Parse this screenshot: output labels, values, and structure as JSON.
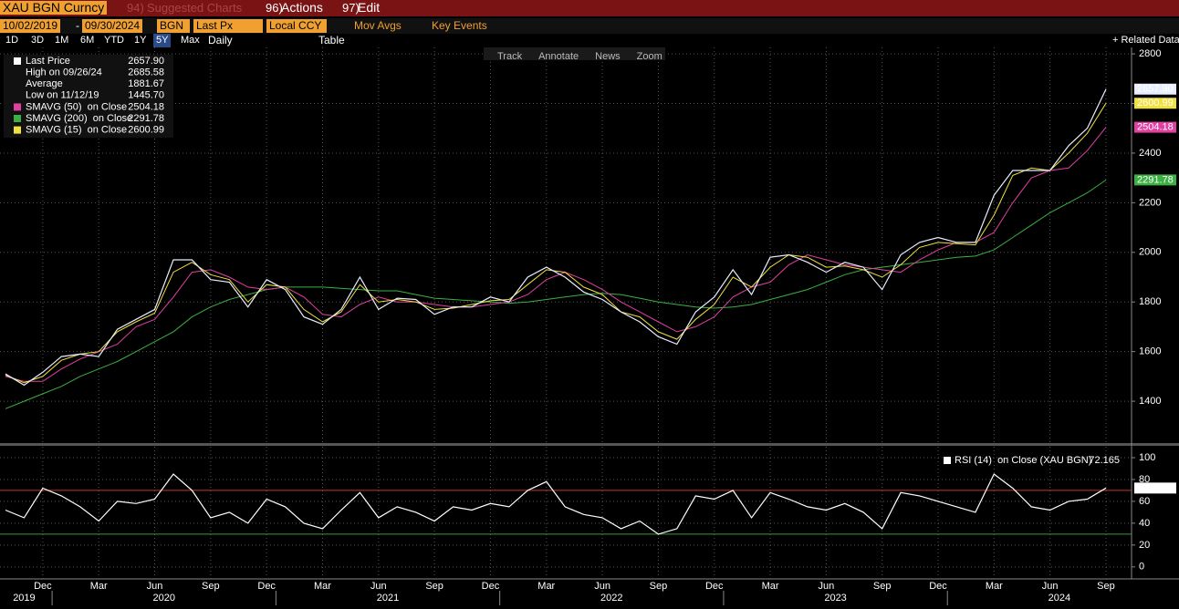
{
  "ui": {
    "ticker": "XAU BGN Curncy",
    "suggested_num": "94)",
    "suggested": "Suggested Charts",
    "actions_num": "96)",
    "actions": "Actions",
    "edit_num": "97)",
    "edit": "Edit",
    "start_date": "10/02/2019",
    "dash": "-",
    "end_date": "09/30/2024",
    "source": "BGN",
    "field": "Last Px",
    "currency": "Local CCY",
    "mov_avgs": "Mov Avgs",
    "key_events": "Key Events",
    "periods": [
      "1D",
      "3D",
      "1M",
      "6M",
      "YTD",
      "1Y",
      "5Y",
      "Max"
    ],
    "frequency": "Daily",
    "table": "Table",
    "related": "+ Related Data",
    "tools": [
      "Track",
      "Annotate",
      "News",
      "Zoom"
    ]
  },
  "chart_data": [
    {
      "type": "line",
      "x": [
        "2019-10",
        "2019-11",
        "2019-12",
        "2020-01",
        "2020-02",
        "2020-03",
        "2020-04",
        "2020-05",
        "2020-06",
        "2020-07",
        "2020-08",
        "2020-09",
        "2020-10",
        "2020-11",
        "2020-12",
        "2021-01",
        "2021-02",
        "2021-03",
        "2021-04",
        "2021-05",
        "2021-06",
        "2021-07",
        "2021-08",
        "2021-09",
        "2021-10",
        "2021-11",
        "2021-12",
        "2022-01",
        "2022-02",
        "2022-03",
        "2022-04",
        "2022-05",
        "2022-06",
        "2022-07",
        "2022-08",
        "2022-09",
        "2022-10",
        "2022-11",
        "2022-12",
        "2023-01",
        "2023-02",
        "2023-03",
        "2023-04",
        "2023-05",
        "2023-06",
        "2023-07",
        "2023-08",
        "2023-09",
        "2023-10",
        "2023-11",
        "2023-12",
        "2024-01",
        "2024-02",
        "2024-03",
        "2024-04",
        "2024-05",
        "2024-06",
        "2024-07",
        "2024-08",
        "2024-09"
      ],
      "series": [
        {
          "name": "Last Price",
          "color": "#e8eeff",
          "legend_label": "2657.90",
          "values": [
            1510,
            1465,
            1517,
            1580,
            1590,
            1580,
            1690,
            1730,
            1770,
            1970,
            1970,
            1890,
            1880,
            1780,
            1890,
            1850,
            1740,
            1710,
            1770,
            1900,
            1770,
            1815,
            1810,
            1750,
            1780,
            1780,
            1820,
            1800,
            1900,
            1940,
            1900,
            1840,
            1810,
            1760,
            1720,
            1660,
            1630,
            1760,
            1820,
            1930,
            1830,
            1980,
            1990,
            1960,
            1920,
            1960,
            1940,
            1850,
            1990,
            2040,
            2060,
            2040,
            2040,
            2230,
            2330,
            2330,
            2330,
            2430,
            2500,
            2657.9
          ]
        },
        {
          "name": "SMAVG (50)  on Close",
          "color": "#e040a0",
          "legend_label": "2504.18",
          "values": [
            1500,
            1480,
            1480,
            1530,
            1570,
            1600,
            1630,
            1700,
            1730,
            1820,
            1920,
            1930,
            1900,
            1860,
            1850,
            1860,
            1820,
            1750,
            1740,
            1790,
            1820,
            1800,
            1800,
            1790,
            1780,
            1780,
            1790,
            1800,
            1830,
            1890,
            1920,
            1890,
            1850,
            1800,
            1760,
            1720,
            1680,
            1700,
            1740,
            1820,
            1860,
            1880,
            1950,
            1990,
            1970,
            1950,
            1940,
            1930,
            1920,
            1970,
            2010,
            2040,
            2040,
            2080,
            2200,
            2300,
            2330,
            2340,
            2410,
            2504.18
          ]
        },
        {
          "name": "SMAVG (200)  on Close",
          "color": "#3cb043",
          "legend_label": "2291.78",
          "values": [
            1370,
            1400,
            1430,
            1460,
            1500,
            1530,
            1560,
            1600,
            1640,
            1680,
            1740,
            1780,
            1810,
            1830,
            1850,
            1860,
            1860,
            1860,
            1855,
            1850,
            1845,
            1845,
            1830,
            1815,
            1810,
            1805,
            1800,
            1795,
            1800,
            1810,
            1820,
            1830,
            1835,
            1830,
            1815,
            1800,
            1790,
            1780,
            1775,
            1780,
            1790,
            1810,
            1830,
            1850,
            1880,
            1910,
            1930,
            1940,
            1950,
            1960,
            1970,
            1980,
            1985,
            2010,
            2060,
            2110,
            2160,
            2200,
            2240,
            2291.78
          ]
        },
        {
          "name": "SMAVG (15)  on Close",
          "color": "#f0e040",
          "legend_label": "2600.99",
          "values": [
            1505,
            1475,
            1500,
            1565,
            1590,
            1600,
            1680,
            1720,
            1755,
            1920,
            1960,
            1910,
            1890,
            1800,
            1870,
            1860,
            1770,
            1720,
            1760,
            1870,
            1800,
            1810,
            1800,
            1770,
            1775,
            1790,
            1805,
            1810,
            1870,
            1930,
            1920,
            1860,
            1830,
            1760,
            1740,
            1680,
            1650,
            1730,
            1790,
            1900,
            1860,
            1940,
            1990,
            1980,
            1940,
            1945,
            1930,
            1900,
            1950,
            2020,
            2040,
            2035,
            2030,
            2150,
            2310,
            2340,
            2330,
            2400,
            2480,
            2600.99
          ]
        }
      ],
      "stats": [
        {
          "name": "High on 09/26/24",
          "value": 2685.58
        },
        {
          "name": "Average",
          "value": 1881.67
        },
        {
          "name": "Low on 11/12/19",
          "value": {
            "value": 1445.7,
            "label": "1445.70"
          }
        }
      ],
      "ylim": [
        1235,
        2826
      ],
      "yticks": [
        1400,
        1600,
        1800,
        2000,
        2200,
        2400,
        2600,
        2800
      ],
      "xticks": [
        {
          "value": "2019-12",
          "label": "Dec"
        },
        {
          "value": "2020-03",
          "label": "Mar"
        },
        {
          "value": "2020-06",
          "label": "Jun"
        },
        {
          "value": "2020-09",
          "label": "Sep"
        },
        {
          "value": "2020-12",
          "label": "Dec"
        },
        {
          "value": "2021-03",
          "label": "Mar"
        },
        {
          "value": "2021-06",
          "label": "Jun"
        },
        {
          "value": "2021-09",
          "label": "Sep"
        },
        {
          "value": "2021-12",
          "label": "Dec"
        },
        {
          "value": "2022-03",
          "label": "Mar"
        },
        {
          "value": "2022-06",
          "label": "Jun"
        },
        {
          "value": "2022-09",
          "label": "Sep"
        },
        {
          "value": "2022-12",
          "label": "Dec"
        },
        {
          "value": "2023-03",
          "label": "Mar"
        },
        {
          "value": "2023-06",
          "label": "Jun"
        },
        {
          "value": "2023-09",
          "label": "Sep"
        },
        {
          "value": "2023-12",
          "label": "Dec"
        },
        {
          "value": "2024-03",
          "label": "Mar"
        },
        {
          "value": "2024-06",
          "label": "Jun"
        },
        {
          "value": "2024-09",
          "label": "Sep"
        }
      ],
      "years": [
        "2019",
        "2020",
        "2021",
        "2022",
        "2023",
        "2024"
      ],
      "grid": true
    },
    {
      "type": "line",
      "series": [
        {
          "name": "RSI (14)  on Close (XAU BGN)",
          "color": "#ffffff",
          "legend_label": "72.165",
          "values": [
            52,
            45,
            72,
            65,
            55,
            42,
            60,
            58,
            62,
            85,
            70,
            45,
            50,
            40,
            62,
            55,
            40,
            35,
            52,
            68,
            45,
            55,
            50,
            42,
            55,
            52,
            58,
            55,
            70,
            78,
            55,
            48,
            45,
            35,
            42,
            30,
            35,
            65,
            62,
            70,
            45,
            68,
            62,
            55,
            52,
            58,
            50,
            35,
            68,
            65,
            60,
            55,
            50,
            85,
            72,
            55,
            52,
            60,
            62,
            72.165
          ]
        }
      ],
      "hlines": [
        {
          "value": 70,
          "color": "#c0392b"
        },
        {
          "value": 30,
          "color": "#3a9a3a"
        }
      ],
      "ylim": [
        -11,
        110
      ],
      "yticks": [
        0,
        20,
        40,
        60,
        80,
        100
      ],
      "grid": true
    }
  ]
}
